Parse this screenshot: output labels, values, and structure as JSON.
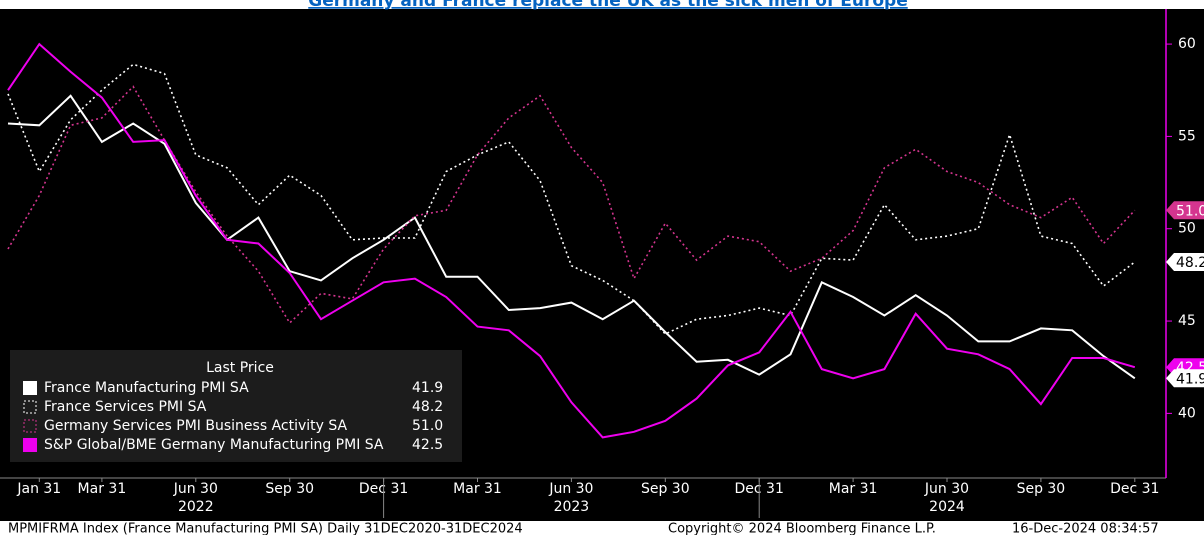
{
  "chart_data": {
    "type": "line",
    "title": "Germany and France replace the UK as the sick men of Europe",
    "categories": [
      null,
      "Jan 31",
      null,
      "Mar 31",
      null,
      null,
      "Jun 30",
      null,
      null,
      "Sep 30",
      null,
      null,
      "Dec 31",
      null,
      null,
      "Mar 31",
      null,
      null,
      "Jun 30",
      null,
      null,
      "Sep 30",
      null,
      null,
      "Dec 31",
      null,
      null,
      "Mar 31",
      null,
      null,
      "Jun 30",
      null,
      null,
      "Sep 30",
      null,
      null,
      "Dec 31"
    ],
    "years": [
      "2022",
      "2023",
      "2024"
    ],
    "ylim": [
      36.5,
      61.9
    ],
    "yticks": [
      40,
      45,
      50,
      55,
      60
    ],
    "axis_side": "right",
    "grid": false,
    "legend": {
      "title": "Last Price",
      "position": "lower left"
    },
    "series": [
      {
        "name": "France Manufacturing PMI SA",
        "color": "#ffffff",
        "style": "solid",
        "last_label": "41.9",
        "values": [
          55.7,
          55.6,
          57.2,
          54.7,
          55.7,
          54.6,
          51.4,
          49.4,
          50.6,
          47.7,
          47.2,
          48.4,
          49.4,
          50.6,
          47.4,
          47.4,
          45.6,
          45.7,
          46.0,
          45.1,
          46.1,
          44.4,
          42.8,
          42.9,
          42.1,
          43.2,
          47.1,
          46.3,
          45.3,
          46.4,
          45.3,
          43.9,
          43.9,
          44.6,
          44.5,
          43.1,
          41.9
        ]
      },
      {
        "name": "France Services PMI SA",
        "color": "#ffffff",
        "style": "dotted",
        "last_label": "48.2",
        "values": [
          57.3,
          53.1,
          55.9,
          57.5,
          58.9,
          58.4,
          54.0,
          53.3,
          51.3,
          52.9,
          51.8,
          49.4,
          49.5,
          49.5,
          53.1,
          54.0,
          54.7,
          52.6,
          48.0,
          47.2,
          46.1,
          44.3,
          45.1,
          45.3,
          45.7,
          45.3,
          48.4,
          48.3,
          51.3,
          49.4,
          49.6,
          50.0,
          55.1,
          49.6,
          49.2,
          46.9,
          48.2
        ]
      },
      {
        "name": "Germany Services PMI Business Activity SA",
        "color": "#d4358f",
        "style": "dotted",
        "last_label": "51.0",
        "values": [
          48.9,
          51.8,
          55.6,
          56.0,
          57.7,
          54.8,
          52.0,
          49.6,
          47.7,
          44.9,
          46.5,
          46.2,
          48.9,
          50.7,
          51.0,
          54.0,
          56.0,
          57.2,
          54.4,
          52.5,
          47.3,
          50.3,
          48.3,
          49.6,
          49.3,
          47.7,
          48.4,
          49.9,
          53.3,
          54.3,
          53.1,
          52.5,
          51.3,
          50.6,
          51.7,
          49.2,
          51.0
        ]
      },
      {
        "name": "S&P Global/BME Germany Manufacturing PMI SA",
        "color": "#ee00ee",
        "style": "solid",
        "last_label": "42.5",
        "values": [
          57.5,
          60.0,
          58.5,
          57.1,
          54.7,
          54.8,
          51.8,
          49.4,
          49.2,
          47.6,
          45.1,
          46.1,
          47.1,
          47.3,
          46.3,
          44.7,
          44.5,
          43.1,
          40.6,
          38.7,
          39.0,
          39.6,
          40.8,
          42.6,
          43.3,
          45.5,
          42.4,
          41.9,
          42.4,
          45.4,
          43.5,
          43.2,
          42.4,
          40.5,
          43.0,
          43.0,
          42.5
        ]
      }
    ],
    "footer": [
      "MPMIFRMA Index (France Manufacturing PMI SA)  Daily 31DEC2020-31DEC2024",
      "Copyright© 2024 Bloomberg Finance L.P.",
      "16-Dec-2024 08:34:57"
    ]
  }
}
